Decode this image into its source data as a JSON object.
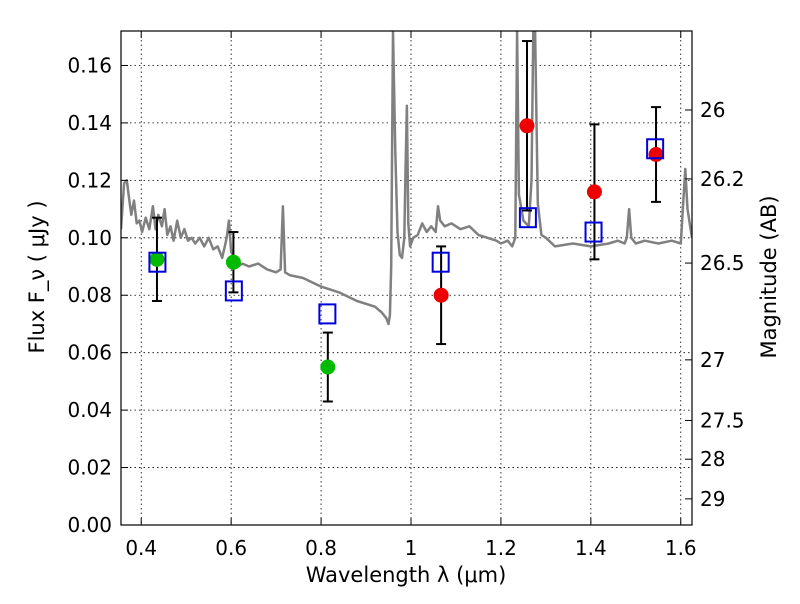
{
  "chart_data": {
    "type": "scatter",
    "xlabel": "Wavelength  λ (μm)",
    "ylabel": "Flux  F_ν  ( μJy )",
    "ylabel_right": "Magnitude (AB)",
    "xlim": [
      0.355,
      1.625
    ],
    "ylim": [
      0.0,
      0.172
    ],
    "grid": true,
    "x_ticks": [
      0.4,
      0.6,
      0.8,
      1.0,
      1.2,
      1.4,
      1.6
    ],
    "x_tick_labels": [
      "0.4",
      "0.6",
      "0.8",
      "1",
      "1.2",
      "1.4",
      "1.6"
    ],
    "y_ticks": [
      0.0,
      0.02,
      0.04,
      0.06,
      0.08,
      0.1,
      0.12,
      0.14,
      0.16
    ],
    "y_tick_labels": [
      "0.00",
      "0.02",
      "0.04",
      "0.06",
      "0.08",
      "0.10",
      "0.12",
      "0.14",
      "0.16"
    ],
    "right_ticks": [
      {
        "flux": 0.1445,
        "label": "26"
      },
      {
        "flux": 0.1205,
        "label": "26.2"
      },
      {
        "flux": 0.0912,
        "label": "26.5"
      },
      {
        "flux": 0.0575,
        "label": "27"
      },
      {
        "flux": 0.0364,
        "label": "27.5"
      },
      {
        "flux": 0.0229,
        "label": "28"
      },
      {
        "flux": 0.0091,
        "label": "29"
      }
    ],
    "series": [
      {
        "kind": "line",
        "color": "#808080",
        "x": [
          0.355,
          0.362,
          0.368,
          0.372,
          0.378,
          0.384,
          0.39,
          0.396,
          0.402,
          0.41,
          0.418,
          0.426,
          0.432,
          0.438,
          0.446,
          0.452,
          0.458,
          0.465,
          0.472,
          0.48,
          0.488,
          0.496,
          0.504,
          0.512,
          0.52,
          0.53,
          0.54,
          0.55,
          0.56,
          0.57,
          0.58,
          0.59,
          0.595,
          0.6,
          0.608,
          0.615,
          0.625,
          0.64,
          0.66,
          0.68,
          0.7,
          0.71,
          0.715,
          0.72,
          0.73,
          0.76,
          0.8,
          0.84,
          0.88,
          0.92,
          0.935,
          0.945,
          0.95,
          0.953,
          0.956,
          0.96,
          0.965,
          0.97,
          0.975,
          0.98,
          0.985,
          0.988,
          0.991,
          0.994,
          0.998,
          1.005,
          1.015,
          1.025,
          1.035,
          1.045,
          1.055,
          1.06,
          1.065,
          1.075,
          1.09,
          1.11,
          1.13,
          1.15,
          1.17,
          1.19,
          1.2,
          1.215,
          1.225,
          1.232,
          1.236,
          1.24,
          1.25,
          1.262,
          1.268,
          1.272,
          1.276,
          1.282,
          1.29,
          1.3,
          1.32,
          1.36,
          1.4,
          1.44,
          1.46,
          1.475,
          1.48,
          1.485,
          1.49,
          1.5,
          1.52,
          1.55,
          1.58,
          1.6,
          1.605,
          1.61,
          1.615,
          1.625
        ],
        "y": [
          0.103,
          0.119,
          0.12,
          0.115,
          0.108,
          0.113,
          0.105,
          0.106,
          0.102,
          0.107,
          0.103,
          0.111,
          0.103,
          0.108,
          0.104,
          0.11,
          0.101,
          0.104,
          0.099,
          0.106,
          0.1,
          0.103,
          0.099,
          0.1,
          0.098,
          0.1,
          0.097,
          0.1,
          0.096,
          0.097,
          0.093,
          0.1,
          0.106,
          0.095,
          0.093,
          0.09,
          0.091,
          0.09,
          0.091,
          0.089,
          0.088,
          0.089,
          0.111,
          0.088,
          0.087,
          0.086,
          0.083,
          0.081,
          0.078,
          0.076,
          0.074,
          0.072,
          0.07,
          0.073,
          0.09,
          0.172,
          0.13,
          0.102,
          0.094,
          0.093,
          0.1,
          0.125,
          0.146,
          0.105,
          0.097,
          0.1,
          0.101,
          0.105,
          0.102,
          0.104,
          0.102,
          0.111,
          0.106,
          0.104,
          0.105,
          0.103,
          0.104,
          0.101,
          0.1,
          0.099,
          0.098,
          0.099,
          0.097,
          0.1,
          0.172,
          0.115,
          0.106,
          0.104,
          0.12,
          0.172,
          0.172,
          0.112,
          0.101,
          0.1,
          0.097,
          0.098,
          0.097,
          0.098,
          0.099,
          0.098,
          0.1,
          0.11,
          0.1,
          0.098,
          0.099,
          0.098,
          0.099,
          0.098,
          0.111,
          0.124,
          0.11,
          0.1
        ]
      },
      {
        "kind": "points",
        "marker": "circle",
        "color": "#00bb00",
        "x": [
          0.435,
          0.605,
          0.815
        ],
        "y": [
          0.0925,
          0.0915,
          0.055
        ],
        "err": [
          0.0145,
          0.0105,
          0.012
        ]
      },
      {
        "kind": "points",
        "marker": "circle",
        "color": "#ee0000",
        "x": [
          1.067,
          1.258,
          1.408,
          1.545
        ],
        "y": [
          0.08,
          0.139,
          0.116,
          0.129
        ],
        "err": [
          0.017,
          0.0295,
          0.0235,
          0.0165
        ]
      },
      {
        "kind": "points",
        "marker": "square",
        "color": "#0000dd",
        "x": [
          0.436,
          0.606,
          0.814,
          1.066,
          1.26,
          1.406,
          1.543
        ],
        "y": [
          0.0915,
          0.0815,
          0.0735,
          0.0915,
          0.107,
          0.102,
          0.131
        ]
      }
    ]
  }
}
